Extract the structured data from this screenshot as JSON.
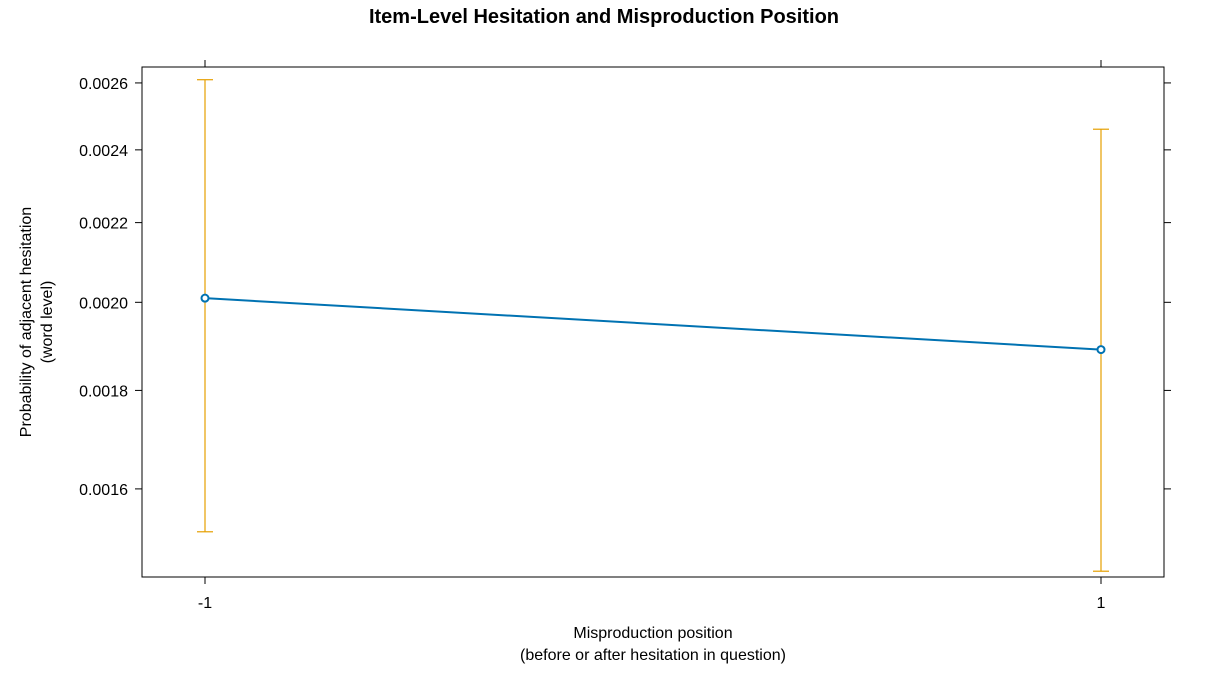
{
  "chart_data": {
    "type": "line",
    "title": "Item-Level Hesitation and Misproduction Position",
    "xlabel": [
      "Misproduction position",
      "(before or after hesitation in question)"
    ],
    "ylabel": [
      "Probability of adjacent hesitation",
      "(word level)"
    ],
    "x": [
      -1,
      1
    ],
    "x_tick_labels": [
      "-1",
      "1"
    ],
    "y_scale": "log",
    "y_ticks": [
      0.0016,
      0.0018,
      0.002,
      0.0022,
      0.0024,
      0.0026
    ],
    "y_tick_labels": [
      "0.0016",
      "0.0018",
      "0.0020",
      "0.0022",
      "0.0024",
      "0.0026"
    ],
    "ylim": [
      0.00144,
      0.00265
    ],
    "series": [
      {
        "values": [
          0.00201,
          0.00189
        ],
        "lower": [
          0.00152,
          0.00145
        ],
        "upper": [
          0.00261,
          0.00246
        ]
      }
    ],
    "colors": {
      "line": "#0072B2",
      "error_bars": "#E69F00",
      "axes": "#000000"
    },
    "grid": false
  }
}
